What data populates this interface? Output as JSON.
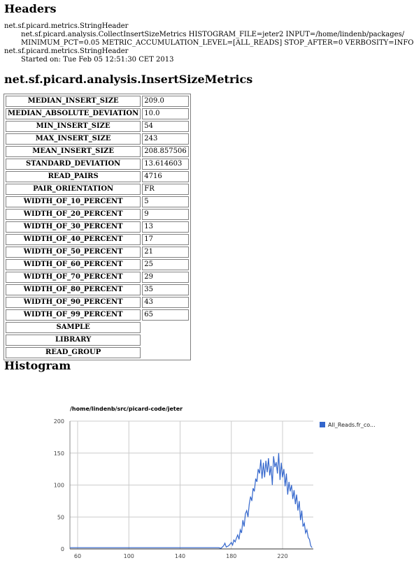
{
  "headings": {
    "headers": "Headers",
    "metrics": "net.sf.picard.analysis.InsertSizeMetrics",
    "histogram": "Histogram"
  },
  "header_lines": [
    "net.sf.picard.metrics.StringHeader",
    "net.sf.picard.analysis.CollectInsertSizeMetrics HISTOGRAM_FILE=jeter2 INPUT=/home/lindenb/packages/",
    "MINIMUM_PCT=0.05 METRIC_ACCUMULATION_LEVEL=[ALL_READS] STOP_AFTER=0 VERBOSITY=INFO",
    "net.sf.picard.metrics.StringHeader",
    "Started on: Tue Feb 05 12:51:30 CET 2013"
  ],
  "metrics": [
    {
      "key": "MEDIAN_INSERT_SIZE",
      "value": "209.0"
    },
    {
      "key": "MEDIAN_ABSOLUTE_DEVIATION",
      "value": "10.0"
    },
    {
      "key": "MIN_INSERT_SIZE",
      "value": "54"
    },
    {
      "key": "MAX_INSERT_SIZE",
      "value": "243"
    },
    {
      "key": "MEAN_INSERT_SIZE",
      "value": "208.857506"
    },
    {
      "key": "STANDARD_DEVIATION",
      "value": "13.614603"
    },
    {
      "key": "READ_PAIRS",
      "value": "4716"
    },
    {
      "key": "PAIR_ORIENTATION",
      "value": "FR"
    },
    {
      "key": "WIDTH_OF_10_PERCENT",
      "value": "5"
    },
    {
      "key": "WIDTH_OF_20_PERCENT",
      "value": "9"
    },
    {
      "key": "WIDTH_OF_30_PERCENT",
      "value": "13"
    },
    {
      "key": "WIDTH_OF_40_PERCENT",
      "value": "17"
    },
    {
      "key": "WIDTH_OF_50_PERCENT",
      "value": "21"
    },
    {
      "key": "WIDTH_OF_60_PERCENT",
      "value": "25"
    },
    {
      "key": "WIDTH_OF_70_PERCENT",
      "value": "29"
    },
    {
      "key": "WIDTH_OF_80_PERCENT",
      "value": "35"
    },
    {
      "key": "WIDTH_OF_90_PERCENT",
      "value": "43"
    },
    {
      "key": "WIDTH_OF_99_PERCENT",
      "value": "65"
    },
    {
      "key": "SAMPLE",
      "value": ""
    },
    {
      "key": "LIBRARY",
      "value": ""
    },
    {
      "key": "READ_GROUP",
      "value": ""
    }
  ],
  "chart_data": {
    "type": "line",
    "title": "/home/lindenb/src/picard-code/jeter",
    "xlabel": "",
    "ylabel": "",
    "xlim": [
      54,
      244
    ],
    "ylim": [
      0,
      200
    ],
    "xticks": [
      60,
      100,
      140,
      180,
      220
    ],
    "yticks": [
      0,
      50,
      100,
      150,
      200
    ],
    "grid": true,
    "legend_position": "right",
    "series_color": "#3366cc",
    "series": [
      {
        "name": "All_Reads.fr_co...",
        "x": [
          54,
          120,
          170,
          172,
          174,
          175,
          176,
          178,
          180,
          181,
          182,
          183,
          184,
          185,
          186,
          187,
          188,
          189,
          190,
          191,
          192,
          193,
          194,
          195,
          196,
          197,
          198,
          199,
          200,
          201,
          202,
          203,
          204,
          205,
          206,
          207,
          208,
          209,
          210,
          211,
          212,
          213,
          214,
          215,
          216,
          217,
          218,
          219,
          220,
          221,
          222,
          223,
          224,
          225,
          226,
          227,
          228,
          229,
          230,
          231,
          232,
          233,
          234,
          235,
          236,
          237,
          238,
          239,
          240,
          241,
          242,
          243
        ],
        "y": [
          2,
          2,
          2,
          1,
          5,
          9,
          3,
          5,
          10,
          6,
          14,
          11,
          17,
          22,
          15,
          30,
          25,
          45,
          35,
          55,
          60,
          50,
          70,
          82,
          75,
          95,
          90,
          110,
          105,
          125,
          118,
          140,
          110,
          135,
          112,
          138,
          120,
          142,
          115,
          130,
          100,
          145,
          128,
          136,
          118,
          150,
          108,
          135,
          112,
          125,
          98,
          118,
          85,
          105,
          90,
          100,
          78,
          92,
          70,
          85,
          60,
          75,
          45,
          60,
          35,
          40,
          25,
          30,
          18,
          15,
          5,
          2
        ]
      }
    ]
  }
}
